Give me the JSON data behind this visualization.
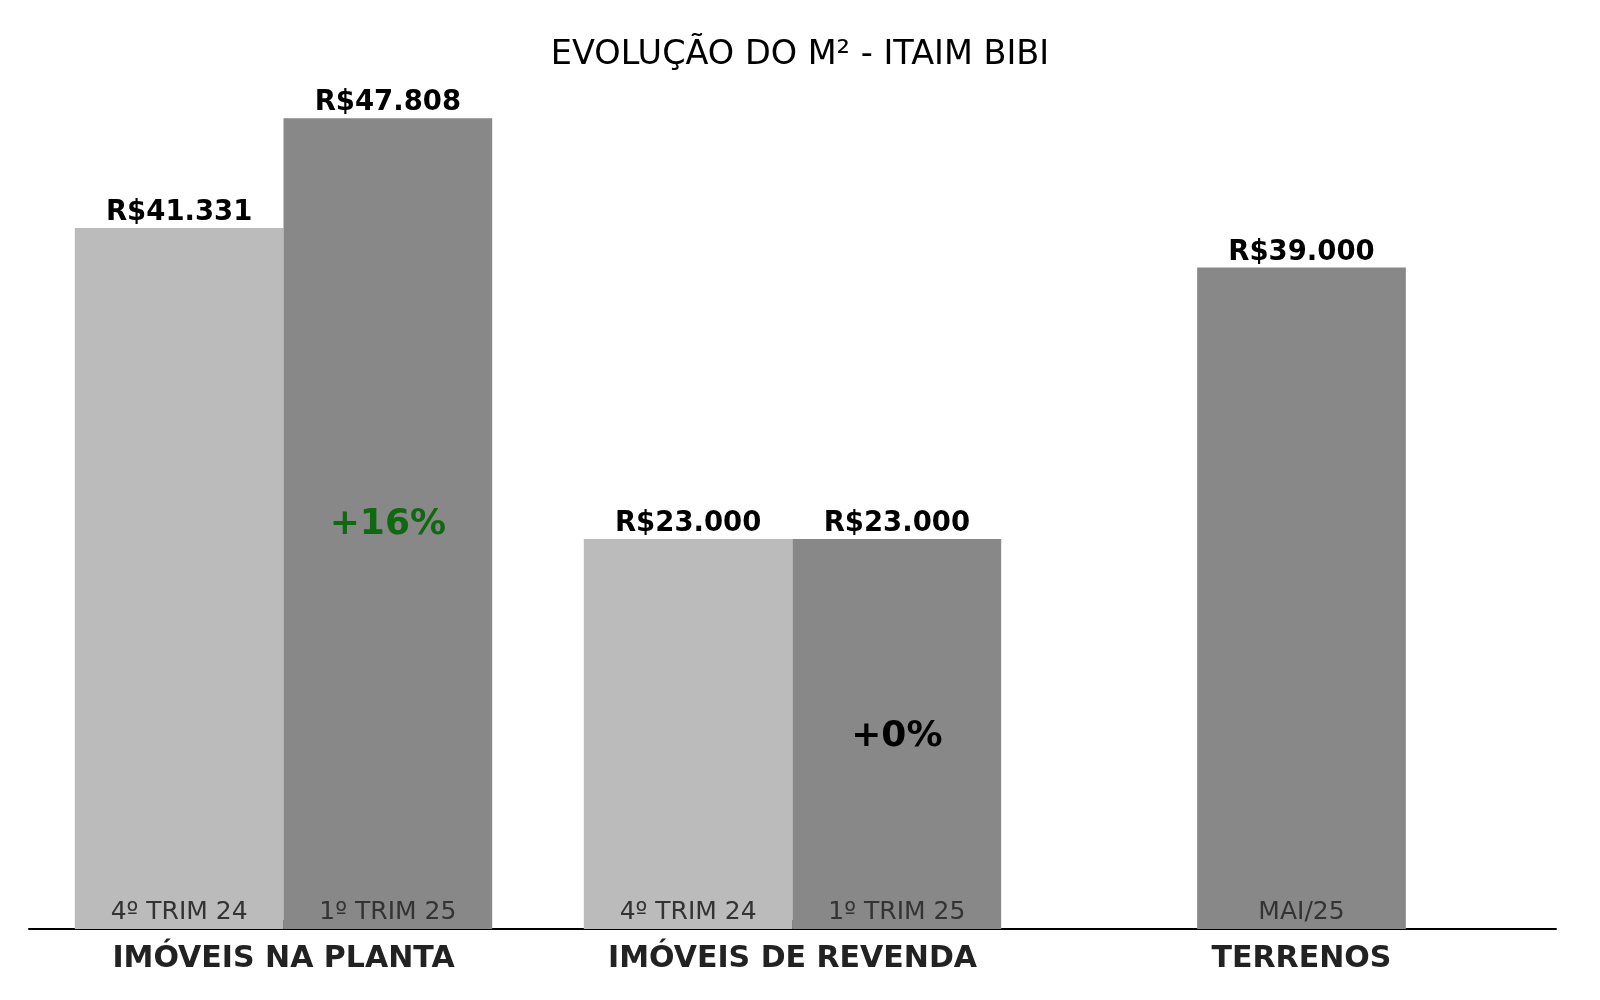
{
  "chart_data": {
    "type": "bar",
    "title": "EVOLUÇÃO DO M² - ITAIM BIBI",
    "categories": [
      "IMÓVEIS NA PLANTA",
      "IMÓVEIS DE REVENDA",
      "TERRENOS"
    ],
    "series": [
      {
        "name": "4º TRIM 24",
        "color": "#bbbbbb",
        "values": [
          41331,
          23000,
          null
        ],
        "value_labels": [
          "R$41.331",
          "R$23.000",
          null
        ]
      },
      {
        "name": "1º TRIM 25",
        "color": "#888888",
        "values": [
          47808,
          23000,
          null
        ],
        "value_labels": [
          "R$47.808",
          "R$23.000",
          null
        ]
      },
      {
        "name": "MAI/25",
        "color": "#888888",
        "values": [
          null,
          null,
          39000
        ],
        "value_labels": [
          null,
          null,
          "R$39.000"
        ]
      }
    ],
    "annotations": [
      {
        "text": "+16%",
        "x": "IMÓVEIS NA PLANTA",
        "y": 24000
      },
      {
        "text": "+0%",
        "x": "IMÓVEIS DE REVENDA",
        "y": 11500
      }
    ],
    "tick_labels": "x"
  }
}
